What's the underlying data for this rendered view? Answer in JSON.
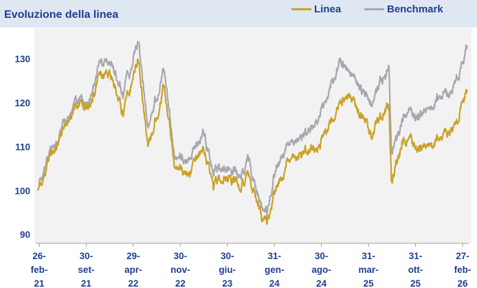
{
  "colors": {
    "linea": "#c9a227",
    "benchmark": "#a7a7b2",
    "text": "#1d3f8f",
    "header_bg": "#dfe7f3",
    "plot_bg": "#f2f2f2"
  },
  "chart_data": {
    "type": "line",
    "title": "Evoluzione della linea",
    "xlabel": "",
    "ylabel": "",
    "ylim": [
      88,
      137
    ],
    "yticks": [
      90,
      100,
      110,
      120,
      130
    ],
    "grid": false,
    "legend": "top-right",
    "x_tick_labels": [
      [
        "26-",
        "feb-",
        "21"
      ],
      [
        "30-",
        "set-",
        "21"
      ],
      [
        "29-",
        "apr-",
        "22"
      ],
      [
        "30-",
        "nov-",
        "22"
      ],
      [
        "30-",
        "giu-",
        "23"
      ],
      [
        "31-",
        "gen-",
        "24"
      ],
      [
        "30-",
        "ago-",
        "24"
      ],
      [
        "31-",
        "mar-",
        "25"
      ],
      [
        "31-",
        "ott-",
        "25"
      ],
      [
        "27-",
        "feb-",
        "26"
      ]
    ],
    "x": [
      "2021-02-26",
      "2021-04-15",
      "2021-06-15",
      "2021-08-15",
      "2021-09-30",
      "2021-11-15",
      "2022-01-05",
      "2022-02-25",
      "2022-04-29",
      "2022-06-10",
      "2022-08-15",
      "2022-09-30",
      "2022-11-30",
      "2023-01-31",
      "2023-03-15",
      "2023-05-15",
      "2023-06-30",
      "2023-08-15",
      "2023-10-05",
      "2023-10-30",
      "2023-12-01",
      "2024-01-31",
      "2024-04-01",
      "2024-06-01",
      "2024-08-30",
      "2024-11-01",
      "2025-01-15",
      "2025-03-01",
      "2025-03-31",
      "2025-04-10",
      "2025-06-01",
      "2025-08-01",
      "2025-10-31",
      "2025-12-20",
      "2026-01-20",
      "2026-02-27"
    ],
    "series": [
      {
        "name": "Linea",
        "values": [
          100,
          107,
          114,
          120,
          118,
          125,
          126,
          118,
          130,
          110,
          124,
          106,
          104,
          110,
          101,
          104,
          101,
          103,
          94,
          93,
          100,
          107,
          108,
          110,
          120,
          121,
          113,
          118,
          119,
          102,
          112,
          110,
          112,
          113,
          116,
          123
        ]
      },
      {
        "name": "Benchmark",
        "values": [
          100,
          108,
          115,
          121,
          119,
          128,
          129,
          122,
          134,
          115,
          128,
          108,
          107,
          113,
          104,
          106,
          104,
          106,
          96,
          95,
          104,
          111,
          112,
          116,
          129,
          126,
          120,
          126,
          127,
          108,
          118,
          117,
          121,
          122,
          126,
          133
        ]
      }
    ]
  }
}
